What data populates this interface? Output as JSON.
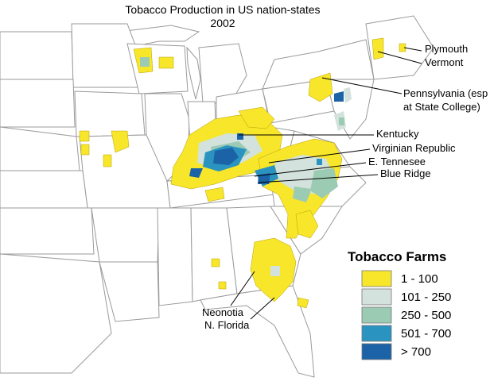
{
  "title": {
    "line1": "Tobacco Production in US nation-states",
    "line2": "2002"
  },
  "callouts": [
    {
      "id": "plymouth",
      "text": "Plymouth"
    },
    {
      "id": "vermont",
      "text": "Vermont"
    },
    {
      "id": "pennsylvania1",
      "text": "Pennsylvania (esp"
    },
    {
      "id": "pennsylvania2",
      "text": "at State College)"
    },
    {
      "id": "kentucky",
      "text": "Kentucky"
    },
    {
      "id": "virginian",
      "text": "Virginian Republic"
    },
    {
      "id": "etennessee",
      "text": "E. Tennesee"
    },
    {
      "id": "blueridge",
      "text": "Blue Ridge"
    },
    {
      "id": "neonotia",
      "text": "Neonotia"
    },
    {
      "id": "nflorida",
      "text": "N. Florida"
    }
  ],
  "legend": {
    "title": "Tobacco Farms",
    "items": [
      {
        "label": "1 - 100",
        "color": "#f7e62a"
      },
      {
        "label": "101 - 250",
        "color": "#d3e2dc"
      },
      {
        "label": "250 - 500",
        "color": "#9ccbb4"
      },
      {
        "label": "501 - 700",
        "color": "#2b93c0"
      },
      {
        "label": "> 700",
        "color": "#1b63a6"
      }
    ]
  }
}
